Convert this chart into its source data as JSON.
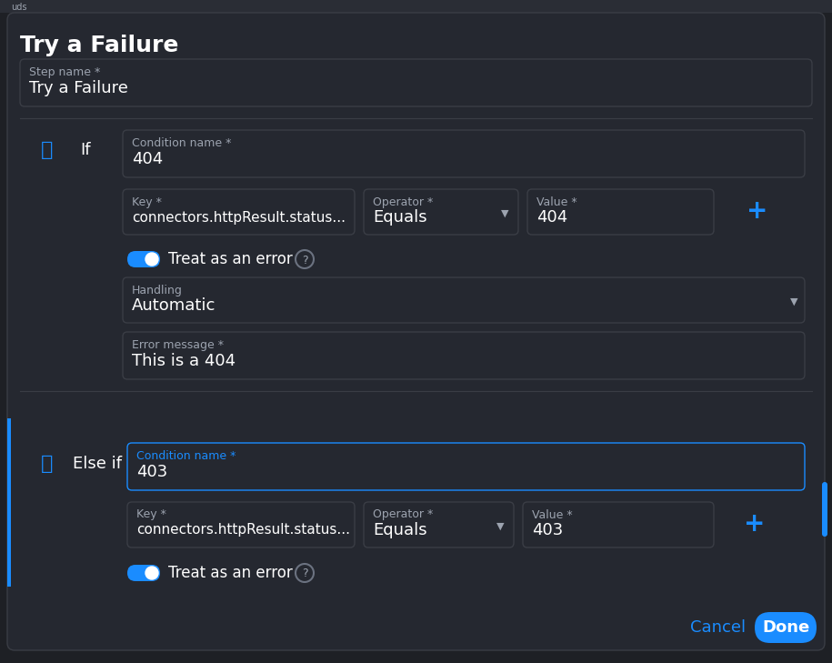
{
  "bg_color": "#1e2025",
  "panel_bg": "#252830",
  "border_color": "#3a3d45",
  "blue_color": "#1a8cff",
  "text_white": "#ffffff",
  "text_gray": "#9ca3af",
  "text_light": "#d1d5db",
  "title": "Try a Failure",
  "step_name_label": "Step name *",
  "step_name_value": "Try a Failure",
  "if_label": "If",
  "else_if_label": "Else if",
  "condition1_label": "Condition name *",
  "condition1_value": "404",
  "key1_label": "Key *",
  "key1_value": "connectors.httpResult.status...",
  "operator1_label": "Operator *",
  "operator1_value": "Equals",
  "value1_label": "Value *",
  "value1_value": "404",
  "treat_error1": "Treat as an error",
  "handling_label": "Handling",
  "handling_value": "Automatic",
  "error_msg_label": "Error message *",
  "error_msg_value": "This is a 404",
  "condition2_label": "Condition name *",
  "condition2_value": "403",
  "key2_label": "Key *",
  "key2_value": "connectors.httpResult.status...",
  "operator2_label": "Operator *",
  "operator2_value": "Equals",
  "value2_label": "Value *",
  "value2_value": "403",
  "treat_error2": "Treat as an error",
  "cancel_label": "Cancel",
  "done_label": "Done",
  "top_bar_text": "uds"
}
